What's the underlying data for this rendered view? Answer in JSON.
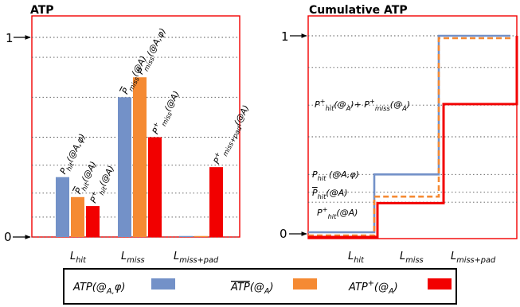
{
  "chart_data": [
    {
      "type": "bar",
      "title": "ATP",
      "categories": [
        "L_hit",
        "L_miss",
        "L_miss+pad"
      ],
      "category_labels": [
        {
          "base": "L",
          "sub": "hit"
        },
        {
          "base": "L",
          "sub": "miss"
        },
        {
          "base": "L",
          "sub": "miss+pad"
        }
      ],
      "ylim": [
        0,
        1
      ],
      "ytick_labels": [
        "0",
        "1"
      ],
      "grid": "horizontal dotted",
      "series": [
        {
          "name": "ATP(@A,φ)",
          "color": "#7391c8",
          "values": [
            0.3,
            0.7,
            0.005
          ]
        },
        {
          "name": "ATP‾(@A)",
          "color": "#f58a33",
          "values": [
            0.2,
            0.8,
            0.005
          ]
        },
        {
          "name": "ATP+(@A)",
          "color": "#f20000",
          "values": [
            0.155,
            0.5,
            0.35
          ]
        }
      ],
      "bar_annotations": [
        {
          "base": "P",
          "sub": "hit",
          "args": "(@A,φ)",
          "bar": 0,
          "series": 0
        },
        {
          "base": "P‾",
          "sub": "hit",
          "args": "(@A)",
          "bar": 0,
          "series": 1
        },
        {
          "base": "P+",
          "sub": "hit",
          "args": "(@A)",
          "bar": 0,
          "series": 2
        },
        {
          "base": "P‾",
          "sub": "miss",
          "args": "(@A)",
          "bar": 1,
          "series": 0
        },
        {
          "base": "P",
          "sub": "miss",
          "args": "(@A,φ)",
          "bar": 1,
          "series": 1
        },
        {
          "base": "P+",
          "sub": "miss",
          "args": "(@A)",
          "bar": 1,
          "series": 2
        },
        {
          "base": "P+",
          "sub": "miss+pad",
          "args": "(@A)",
          "bar": 2,
          "series": 2
        }
      ]
    },
    {
      "type": "line",
      "title": "Cumulative ATP",
      "categories": [
        "L_hit",
        "L_miss",
        "L_miss+pad"
      ],
      "ylim": [
        0,
        1
      ],
      "ytick_labels": [
        "0",
        "1"
      ],
      "grid": "horizontal dotted",
      "series": [
        {
          "name": "ATP(@A,φ)",
          "color": "#7391c8",
          "style": "solid",
          "values": [
            0.3,
            1.0,
            1.0
          ]
        },
        {
          "name": "ATP‾(@A)",
          "color": "#f58a33",
          "style": "dashed",
          "values": [
            0.2,
            1.0,
            1.0
          ]
        },
        {
          "name": "ATP+(@A)",
          "color": "#f20000",
          "style": "solid",
          "values": [
            0.155,
            0.655,
            1.0
          ]
        }
      ],
      "annotations": [
        {
          "text": "P+hit(@A)+ P+miss(@A)"
        },
        {
          "text": "Phit (@A,φ)"
        },
        {
          "text": "P‾hit(@A)"
        },
        {
          "text": "P+hit(@A)"
        }
      ]
    }
  ],
  "legend": [
    {
      "label": "ATP(@",
      "sub": "A,",
      "label_end": "φ)",
      "color": "#7391c8"
    },
    {
      "label": "ATP",
      "label_end": "(@",
      "sub": "A",
      "after": ")",
      "color": "#f58a33"
    },
    {
      "label": "ATP",
      "sup": "+",
      "label_end": "(@",
      "sub": "A",
      "after": ")",
      "color": "#f20000"
    }
  ]
}
